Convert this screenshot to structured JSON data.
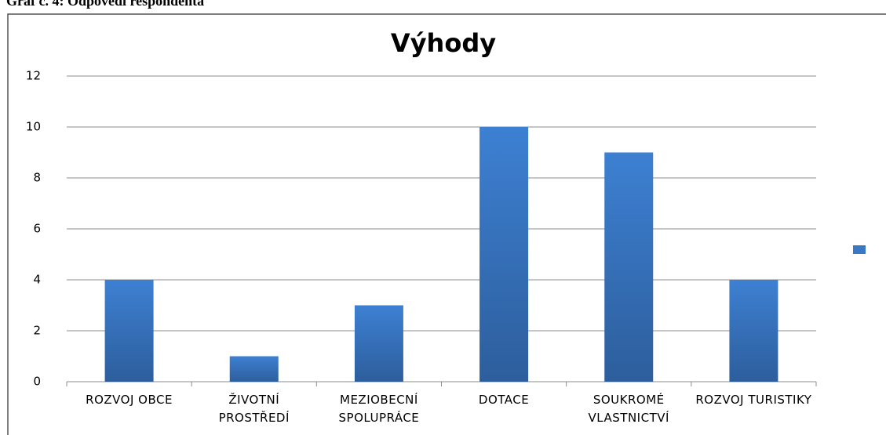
{
  "caption": "Graf č. 4: Odpovědi respondenta",
  "chart_data": {
    "type": "bar",
    "title": "Výhody",
    "categories": [
      "ROZVOJ OBCE",
      "ŽIVOTNÍ PROSTŘEDÍ",
      "MEZIOBECNÍ SPOLUPRÁCE",
      "DOTACE",
      "SOUKROMÉ VLASTNICTVÍ",
      "ROZVOJ TURISTIKY"
    ],
    "values": [
      4,
      1,
      3,
      10,
      9,
      4
    ],
    "color": "#3a78c6",
    "ylim": [
      0,
      12
    ],
    "yticks": [
      0,
      2,
      4,
      6,
      8,
      10,
      12
    ],
    "grid": true,
    "legend": "right"
  }
}
